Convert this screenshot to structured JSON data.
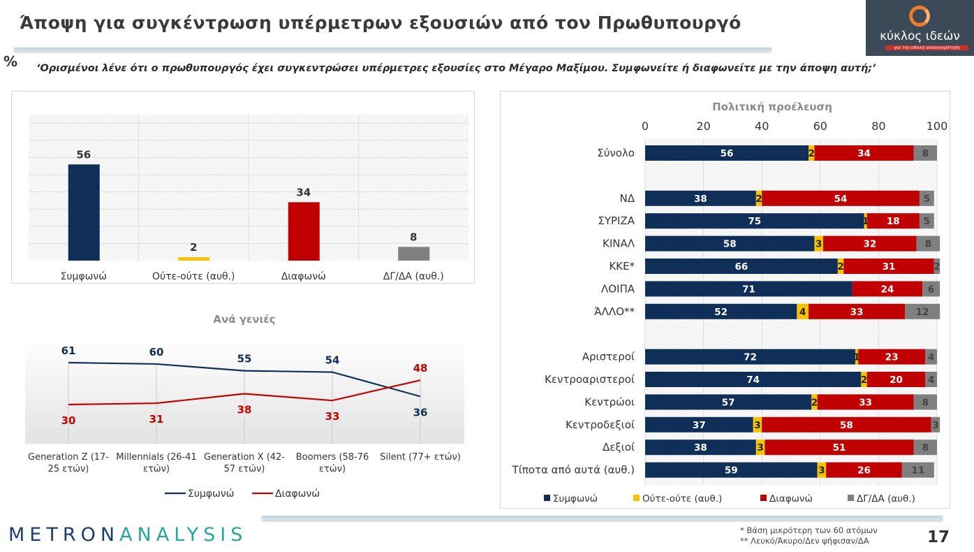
{
  "header": {
    "title": "Άποψη για συγκέντρωση υπέρμετρων εξουσιών από τον Πρωθυπουργό",
    "percent_sign": "%",
    "question": "‘Ορισμένοι λένε ότι ο πρωθυπουργός έχει συγκεντρώσει υπέρμετρες εξουσίες στο Μέγαρο Μαξίμου. Συμφωνείτε ή διαφωνείτε με την άποψη αυτή;’"
  },
  "logo": {
    "name": "κύκλος ιδεών",
    "tagline": "για την εθνική ανασυγκρότηση"
  },
  "colors": {
    "agree": "#0f2f59",
    "neutral": "#f7c200",
    "disagree": "#c00000",
    "dk": "#7f7f7f"
  },
  "chart_data": [
    {
      "type": "bar",
      "title": "",
      "categories": [
        "Συμφωνώ",
        "Ούτε-ούτε (αυθ.)",
        "Διαφωνώ",
        "ΔΓ/ΔΑ (αυθ.)"
      ],
      "values": [
        56,
        2,
        34,
        8
      ],
      "colors": [
        "#0f2f59",
        "#f7c200",
        "#c00000",
        "#7f7f7f"
      ],
      "ylim": [
        0,
        85
      ],
      "grid": true
    },
    {
      "type": "line",
      "title": "Ανά γενιές",
      "categories": [
        "Generation Z (17-25 ετών)",
        "Millennials (26-41 ετών)",
        "Generation X (42-57 ετών)",
        "Boomers (58-76 ετών)",
        "Silent (77+ ετών)"
      ],
      "series": [
        {
          "name": "Συμφωνώ",
          "values": [
            61,
            60,
            55,
            54,
            36
          ],
          "color": "#0f2f59"
        },
        {
          "name": "Διαφωνώ",
          "values": [
            30,
            31,
            38,
            33,
            48
          ],
          "color": "#c00000"
        }
      ],
      "legend": "bottom"
    },
    {
      "type": "bar",
      "orientation": "horizontal",
      "stacked": true,
      "title": "Πολιτική προέλευση",
      "xlim": [
        0,
        100
      ],
      "xticks": [
        "0",
        "20",
        "40",
        "60",
        "80",
        "100"
      ],
      "legend": "bottom",
      "series_names": [
        "Συμφωνώ",
        "Ούτε-ούτε (αυθ.)",
        "Διαφωνώ",
        "ΔΓ/ΔΑ (αυθ.)"
      ],
      "rows": [
        {
          "label": "Σύνολο",
          "values": [
            56,
            2,
            34,
            8
          ]
        },
        {
          "label": "",
          "values": null
        },
        {
          "label": "ΝΔ",
          "values": [
            38,
            2,
            54,
            5
          ]
        },
        {
          "label": "ΣΥΡΙΖΑ",
          "values": [
            75,
            1,
            18,
            5
          ]
        },
        {
          "label": "ΚΙΝΑΛ",
          "values": [
            58,
            3,
            32,
            8
          ]
        },
        {
          "label": "ΚΚΕ*",
          "values": [
            66,
            2,
            31,
            2
          ]
        },
        {
          "label": "ΛΟΙΠΑ",
          "values": [
            71,
            0,
            24,
            6
          ]
        },
        {
          "label": "ΆΛΛΟ**",
          "values": [
            52,
            4,
            33,
            12
          ]
        },
        {
          "label": "",
          "values": null
        },
        {
          "label": "Αριστεροί",
          "values": [
            72,
            1,
            23,
            4
          ]
        },
        {
          "label": "Κεντροαριστεροί",
          "values": [
            74,
            2,
            20,
            4
          ]
        },
        {
          "label": "Κεντρώοι",
          "values": [
            57,
            2,
            33,
            8
          ]
        },
        {
          "label": "Κεντροδεξιοί",
          "values": [
            37,
            3,
            58,
            3
          ]
        },
        {
          "label": "Δεξιοί",
          "values": [
            38,
            3,
            51,
            8
          ]
        },
        {
          "label": "Τίποτα από αυτά (αυθ.)",
          "values": [
            59,
            3,
            26,
            11
          ]
        }
      ]
    }
  ],
  "footer": {
    "brand_a": "METRON",
    "brand_b": "ANALYSIS",
    "note1": "*  Βάση μικρότερη των 60 ατόμων",
    "note2": "** Λευκό/Άκυρο/Δεν ψήφισαν/ΔΑ",
    "page": "17"
  }
}
